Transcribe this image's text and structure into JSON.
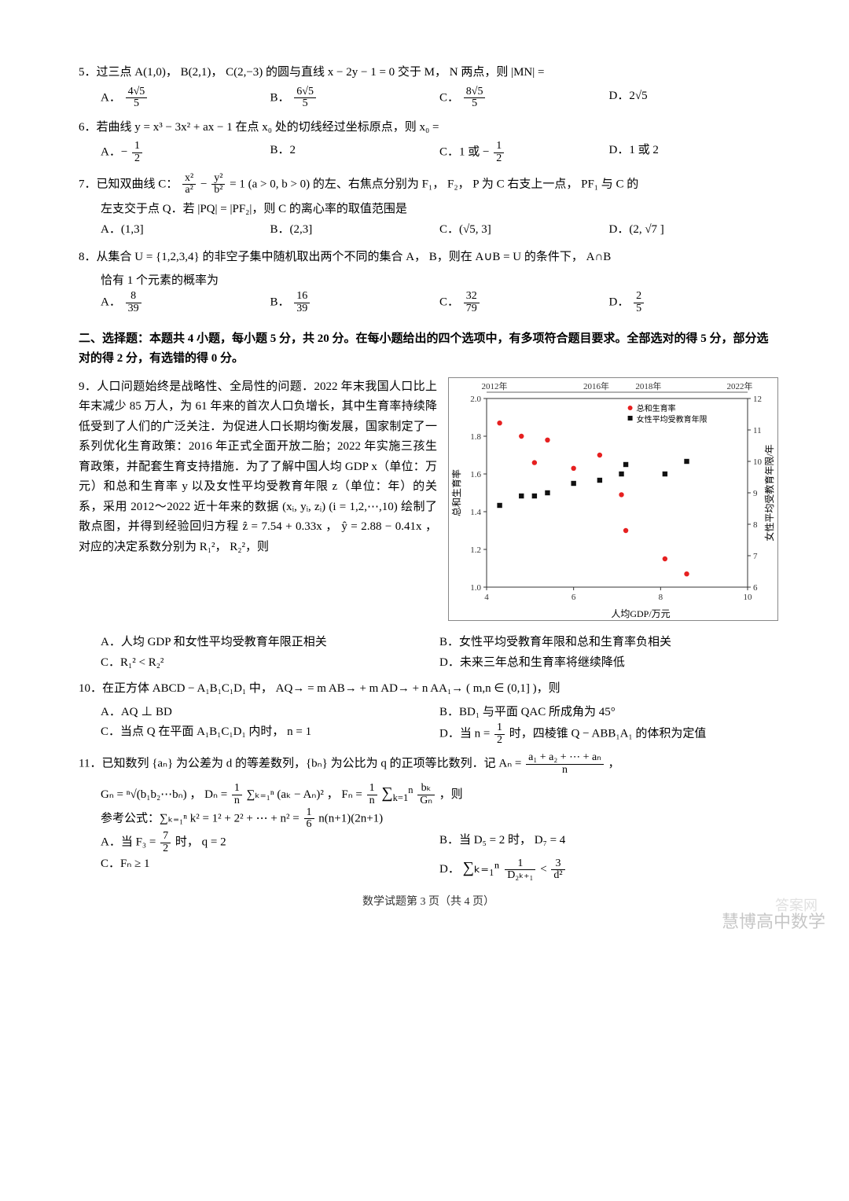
{
  "q5": {
    "stem": "5．过三点 A(1,0)， B(2,1)， C(2,−3) 的圆与直线 x − 2y − 1 = 0 交于 M， N 两点，则 |MN| =",
    "opts": {
      "A": "A．",
      "B": "B．",
      "C": "C．",
      "D": "D．2√5"
    },
    "fracA_num": "4√5",
    "fracA_den": "5",
    "fracB_num": "6√5",
    "fracB_den": "5",
    "fracC_num": "8√5",
    "fracC_den": "5"
  },
  "q6": {
    "stem": "6．若曲线 y = x³ − 3x² + ax − 1 在点 x₀ 处的切线经过坐标原点，则 x₀ =",
    "opts": {
      "A": "A．−",
      "B": "B．2",
      "C": "C．1 或 −",
      "D": "D．1 或 2"
    },
    "half_num": "1",
    "half_den": "2"
  },
  "q7": {
    "stem1": "7．已知双曲线 C：",
    "stem2": "= 1 (a > 0, b > 0) 的左、右焦点分别为 F₁， F₂， P 为 C 右支上一点， PF₁ 与 C 的",
    "stem3": "左支交于点 Q．若 |PQ| = |PF₂|，则 C 的离心率的取值范围是",
    "fracx_num": "x²",
    "fracx_den": "a²",
    "fracy_num": "y²",
    "fracy_den": "b²",
    "opts": {
      "A": "A．(1,3]",
      "B": "B．(2,3]",
      "C": "C．(√5, 3]",
      "D": "D．(2, √7 ]"
    }
  },
  "q8": {
    "stem": "8．从集合 U = {1,2,3,4} 的非空子集中随机取出两个不同的集合 A， B，则在 A∪B = U 的条件下， A∩B",
    "stem2": "恰有 1 个元素的概率为",
    "A_num": "8",
    "A_den": "39",
    "B_num": "16",
    "B_den": "39",
    "C_num": "32",
    "C_den": "79",
    "D_num": "2",
    "D_den": "5",
    "labels": {
      "A": "A．",
      "B": "B．",
      "C": "C．",
      "D": "D．"
    }
  },
  "section2": "二、选择题：本题共 4 小题，每小题 5 分，共 20 分。在每小题给出的四个选项中，有多项符合题目要求。全部选对的得 5 分，部分选对的得 2 分，有选错的得 0 分。",
  "q9": {
    "para": "9．人口问题始终是战略性、全局性的问题．2022 年末我国人口比上年末减少 85 万人，为 61 年来的首次人口负增长，其中生育率持续降低受到了人们的广泛关注．为促进人口长期均衡发展，国家制定了一系列优化生育政策：2016 年正式全面开放二胎；2022 年实施三孩生育政策，并配套生育支持措施．为了了解中国人均 GDP x（单位：万元）和总和生育率 y 以及女性平均受教育年限 z（单位：年）的关系，采用 2012～2022 近十年来的数据 (xᵢ, yᵢ, zᵢ) (i = 1,2,⋯,10) 绘制了散点图，并得到经验回归方程 ẑ = 7.54 + 0.33x ， ŷ = 2.88 − 0.41x ， 对应的决定系数分别为 R₁²， R₂²，则",
    "opts": {
      "A": "A．人均 GDP 和女性平均受教育年限正相关",
      "B": "B．女性平均受教育年限和总和生育率负相关",
      "C": "C．R₁² < R₂²",
      "D": "D．未来三年总和生育率将继续降低"
    }
  },
  "q10": {
    "stem": "10．在正方体 ABCD − A₁B₁C₁D₁ 中， AQ→ = m AB→ + m AD→ + n AA₁→ ( m,n ∈ (0,1] )，则",
    "opts": {
      "A": "A．AQ ⊥ BD",
      "B": "B．BD₁ 与平面 QAC 所成角为 45°",
      "C": "C．当点 Q 在平面 A₁B₁C₁D₁ 内时， n = 1",
      "D_pre": "D．当 n = ",
      "D_post": " 时，四棱锥 Q − ABB₁A₁ 的体积为定值"
    },
    "half_num": "1",
    "half_den": "2"
  },
  "q11": {
    "stem1": "11．已知数列 {aₙ} 为公差为 d 的等差数列，{bₙ} 为公比为 q 的正项等比数列．记 Aₙ = ",
    "An_num": "a₁ + a₂ + ⋯ + aₙ",
    "An_den": "n",
    "line2_a": "Gₙ = ⁿ√(b₁b₂⋯bₙ) ， Dₙ = ",
    "Dn_prefix_num": "1",
    "Dn_prefix_den": "n",
    "Dn_sum": "∑ₖ₌₁ⁿ (aₖ − Aₙ)² ， Fₙ = ",
    "Fn_prefix_num": "1",
    "Fn_prefix_den": "n",
    "Fn_sum_num": "bₖ",
    "Fn_sum_den": "Gₙ",
    "line2_end": "，则",
    "ref": "参考公式：∑ₖ₌₁ⁿ k² = 1² + 2² + ⋯ + n² = ",
    "ref_num": "1",
    "ref_den": "6",
    "ref_tail": " n(n+1)(2n+1)",
    "A_pre": "A．当 F₃ = ",
    "A_num": "7",
    "A_den": "2",
    "A_post": " 时， q = 2",
    "B": "B．当 D₅ = 2 时， D₇ = 4",
    "C": "C．Fₙ ≥ 1",
    "D_pre": "D．",
    "D_sum": "∑ₖ₌₁ⁿ ",
    "D_frac1_num": "1",
    "D_frac1_den": "D₂ₖ₊₁",
    "D_lt": " < ",
    "D_frac2_num": "3",
    "D_frac2_den": "d²"
  },
  "chart": {
    "title_years": [
      "2012年",
      "2016年",
      "2018年",
      "2022年"
    ],
    "legend": [
      "总和生育率",
      "女性平均受教育年限"
    ],
    "xlabel": "人均GDP/万元",
    "ylabel_left": "总和生育率",
    "ylabel_right": "女性平均受教育年限/年",
    "xlim": [
      4,
      10
    ],
    "xtick_step": 2,
    "ylim_left": [
      1.0,
      2.0
    ],
    "ytick_left_step": 0.2,
    "ylim_right": [
      6,
      12
    ],
    "ytick_right_step": 1,
    "bg": "#ffffff",
    "axis_color": "#333333",
    "grid_color": "#dddddd",
    "red": "#e62020",
    "black": "#111111",
    "marker_size": 3.2,
    "series_red": [
      [
        4.3,
        1.87
      ],
      [
        4.8,
        1.8
      ],
      [
        5.1,
        1.66
      ],
      [
        5.4,
        1.78
      ],
      [
        6.0,
        1.63
      ],
      [
        6.6,
        1.7
      ],
      [
        7.1,
        1.49
      ],
      [
        7.2,
        1.3
      ],
      [
        8.1,
        1.15
      ],
      [
        8.6,
        1.07
      ]
    ],
    "series_black": [
      [
        4.3,
        8.6
      ],
      [
        4.8,
        8.9
      ],
      [
        5.1,
        8.9
      ],
      [
        5.4,
        9.0
      ],
      [
        6.0,
        9.3
      ],
      [
        6.6,
        9.4
      ],
      [
        7.1,
        9.6
      ],
      [
        7.2,
        9.9
      ],
      [
        8.1,
        9.6
      ],
      [
        8.6,
        10.0
      ]
    ]
  },
  "footer": "数学试题第 3 页（共 4 页）",
  "watermark": "慧博高中数学",
  "watermark2": "答案网"
}
